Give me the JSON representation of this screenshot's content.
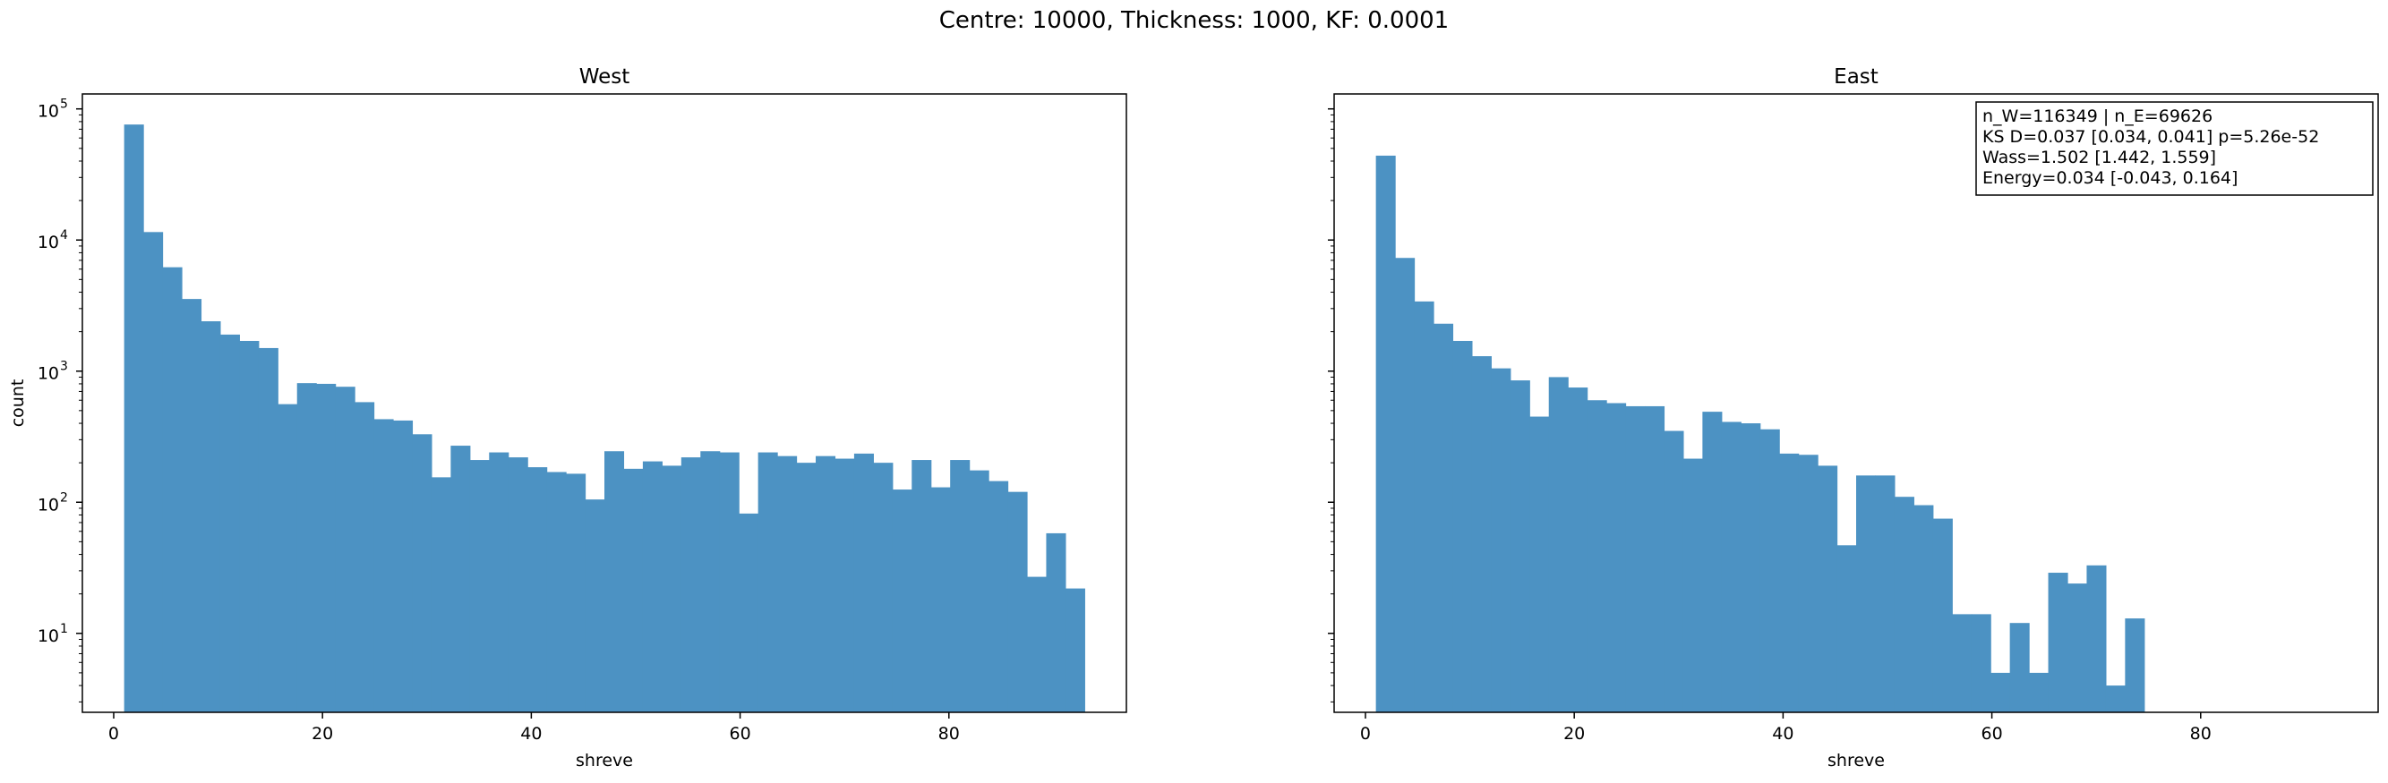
{
  "suptitle": "Centre: 10000, Thickness: 1000, KF: 0.0001",
  "chart_data": [
    {
      "type": "bar",
      "title": "West",
      "xlabel": "shreve",
      "ylabel": "count",
      "yscale": "log",
      "xlim": [
        -3,
        97
      ],
      "ylim": [
        2.5,
        130000
      ],
      "xticks": [
        0,
        20,
        40,
        60,
        80
      ],
      "yticks": [
        10,
        100,
        1000,
        10000,
        100000
      ],
      "ytick_labels": [
        "10",
        "10",
        "10",
        "10",
        "10"
      ],
      "ytick_exponents": [
        "1",
        "2",
        "3",
        "4",
        "5"
      ],
      "bin_width": 1.84,
      "bin_start": 1,
      "color": "#4c92c3",
      "values": [
        76000,
        11500,
        6200,
        3550,
        2400,
        1900,
        1700,
        1500,
        560,
        810,
        800,
        760,
        580,
        430,
        420,
        330,
        155,
        270,
        210,
        240,
        220,
        185,
        170,
        165,
        105,
        245,
        180,
        205,
        190,
        220,
        245,
        240,
        82,
        240,
        225,
        200,
        225,
        215,
        235,
        200,
        125,
        210,
        130,
        210,
        175,
        145,
        120,
        27,
        58,
        22
      ]
    },
    {
      "type": "bar",
      "title": "East",
      "xlabel": "shreve",
      "ylabel": "",
      "yscale": "log",
      "xlim": [
        -3,
        97
      ],
      "ylim": [
        2.5,
        130000
      ],
      "xticks": [
        0,
        20,
        40,
        60,
        80
      ],
      "bin_width": 1.84,
      "bin_start": 1,
      "color": "#4c92c3",
      "values": [
        44000,
        7300,
        3400,
        2300,
        1700,
        1300,
        1050,
        850,
        450,
        900,
        750,
        600,
        570,
        540,
        540,
        350,
        215,
        490,
        410,
        400,
        360,
        235,
        230,
        190,
        47,
        160,
        160,
        110,
        95,
        75,
        14,
        14,
        5,
        12,
        5,
        29,
        24,
        33,
        4,
        13
      ],
      "annotation": [
        "n_W=116349 | n_E=69626",
        "KS D=0.037 [0.034, 0.041]  p=5.26e-52",
        "Wass=1.502 [1.442, 1.559]",
        "Energy=0.034 [-0.043, 0.164]"
      ]
    }
  ]
}
